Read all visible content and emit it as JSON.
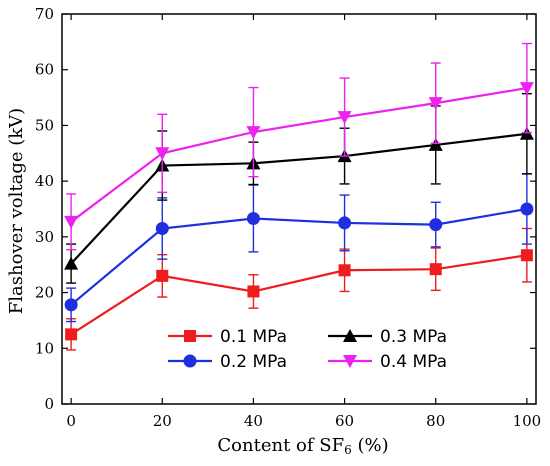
{
  "chart_data": {
    "type": "line",
    "xlabel_prefix": "Content of SF",
    "xlabel_sub": "6",
    "xlabel_suffix": " (%)",
    "ylabel": "Flashover voltage (kV)",
    "x": [
      0,
      20,
      40,
      60,
      80,
      100
    ],
    "xlim": [
      -2,
      102
    ],
    "ylim": [
      0,
      70
    ],
    "x_ticks": [
      0,
      20,
      40,
      60,
      80,
      100
    ],
    "y_ticks": [
      0,
      10,
      20,
      30,
      40,
      50,
      60,
      70
    ],
    "legend_position": "bottom-right",
    "grid": false,
    "series": [
      {
        "name": "0.1 MPa",
        "color": "#ee1c1c",
        "marker": "square",
        "values": [
          12.5,
          23.0,
          20.2,
          24.0,
          24.2,
          26.7
        ],
        "errors": [
          2.8,
          3.8,
          3.0,
          3.8,
          3.8,
          4.8
        ]
      },
      {
        "name": "0.2 MPa",
        "color": "#1f2fe0",
        "marker": "circle",
        "values": [
          17.8,
          31.5,
          33.3,
          32.5,
          32.2,
          35.0
        ],
        "errors": [
          3.0,
          5.5,
          6.0,
          5.0,
          4.0,
          6.3
        ]
      },
      {
        "name": "0.3 MPa",
        "color": "#000000",
        "marker": "triangle-up",
        "values": [
          25.2,
          42.8,
          43.2,
          44.5,
          46.5,
          48.5
        ],
        "errors": [
          3.5,
          6.2,
          3.8,
          5.0,
          7.0,
          7.2
        ]
      },
      {
        "name": "0.4 MPa",
        "color": "#ee22ee",
        "marker": "triangle-down",
        "values": [
          32.7,
          45.0,
          48.8,
          51.5,
          54.0,
          56.7
        ],
        "errors": [
          5.0,
          7.0,
          8.0,
          7.0,
          7.2,
          8.0
        ]
      }
    ]
  }
}
